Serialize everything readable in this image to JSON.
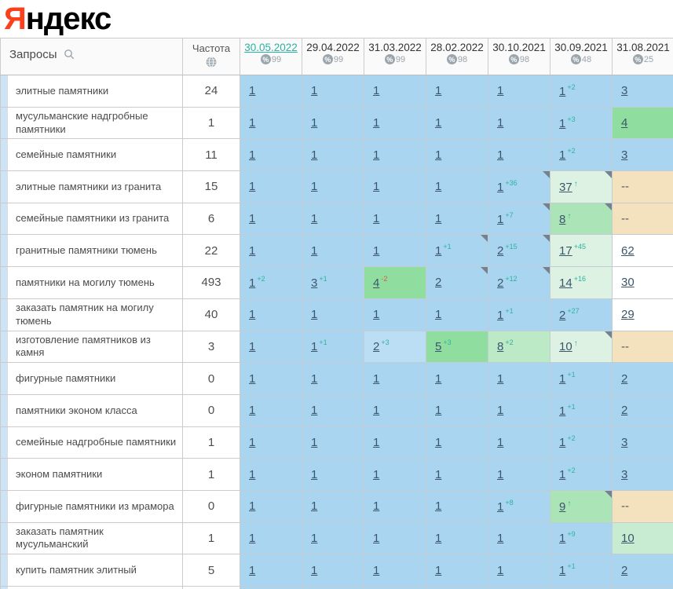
{
  "logo": {
    "red_letter": "Я",
    "black_letters": "ндекс"
  },
  "colors": {
    "accent_teal": "#2ab3a2",
    "change_up": "#2bb3a0",
    "change_down": "#e0564a",
    "link": "#3b566b",
    "yandex_red": "#fc3f1d",
    "bg": {
      "b": "#a9d5f1",
      "b2": "#bcdef5",
      "g1": "#90de9f",
      "g2": "#abe4b6",
      "g3": "#bce9c6",
      "g4": "#ddf2e2",
      "g5": "#c8ecd2",
      "t": "#f4e2bf",
      "w": "#ffffff"
    }
  },
  "table": {
    "queries_header": "Запросы",
    "frequency_header": "Частота",
    "date_columns": [
      {
        "date": "30.05.2022",
        "visibility": "99",
        "active": true
      },
      {
        "date": "29.04.2022",
        "visibility": "99",
        "active": false
      },
      {
        "date": "31.03.2022",
        "visibility": "99",
        "active": false
      },
      {
        "date": "28.02.2022",
        "visibility": "98",
        "active": false
      },
      {
        "date": "30.10.2021",
        "visibility": "98",
        "active": false
      },
      {
        "date": "30.09.2021",
        "visibility": "48",
        "active": false
      },
      {
        "date": "31.08.2021",
        "visibility": "25",
        "active": false
      }
    ],
    "rows": [
      {
        "keyword": "элитные памятники",
        "frequency": "24",
        "cells": [
          {
            "v": "1",
            "bg": "b"
          },
          {
            "v": "1",
            "bg": "b"
          },
          {
            "v": "1",
            "bg": "b"
          },
          {
            "v": "1",
            "bg": "b"
          },
          {
            "v": "1",
            "bg": "b"
          },
          {
            "v": "1",
            "bg": "b",
            "sup": "+2"
          },
          {
            "v": "3",
            "bg": "b"
          }
        ]
      },
      {
        "keyword": "мусульманские надгробные памятники",
        "frequency": "1",
        "cells": [
          {
            "v": "1",
            "bg": "b"
          },
          {
            "v": "1",
            "bg": "b"
          },
          {
            "v": "1",
            "bg": "b"
          },
          {
            "v": "1",
            "bg": "b"
          },
          {
            "v": "1",
            "bg": "b"
          },
          {
            "v": "1",
            "bg": "b",
            "sup": "+3"
          },
          {
            "v": "4",
            "bg": "g1"
          }
        ]
      },
      {
        "keyword": "семейные памятники",
        "frequency": "11",
        "cells": [
          {
            "v": "1",
            "bg": "b"
          },
          {
            "v": "1",
            "bg": "b"
          },
          {
            "v": "1",
            "bg": "b"
          },
          {
            "v": "1",
            "bg": "b"
          },
          {
            "v": "1",
            "bg": "b"
          },
          {
            "v": "1",
            "bg": "b",
            "sup": "+2"
          },
          {
            "v": "3",
            "bg": "b"
          }
        ]
      },
      {
        "keyword": "элитные памятники из гранита",
        "frequency": "15",
        "cells": [
          {
            "v": "1",
            "bg": "b"
          },
          {
            "v": "1",
            "bg": "b"
          },
          {
            "v": "1",
            "bg": "b"
          },
          {
            "v": "1",
            "bg": "b"
          },
          {
            "v": "1",
            "bg": "b",
            "sup": "+36",
            "corner": true
          },
          {
            "v": "37",
            "bg": "g4",
            "new": true,
            "corner": true
          },
          {
            "v": "--",
            "bg": "t",
            "dash": true
          }
        ]
      },
      {
        "keyword": "семейные памятники из гранита",
        "frequency": "6",
        "cells": [
          {
            "v": "1",
            "bg": "b"
          },
          {
            "v": "1",
            "bg": "b"
          },
          {
            "v": "1",
            "bg": "b"
          },
          {
            "v": "1",
            "bg": "b"
          },
          {
            "v": "1",
            "bg": "b",
            "sup": "+7",
            "corner": true
          },
          {
            "v": "8",
            "bg": "g2",
            "new": true,
            "corner": true
          },
          {
            "v": "--",
            "bg": "t",
            "dash": true
          }
        ]
      },
      {
        "keyword": "гранитные памятники тюмень",
        "frequency": "22",
        "cells": [
          {
            "v": "1",
            "bg": "b"
          },
          {
            "v": "1",
            "bg": "b"
          },
          {
            "v": "1",
            "bg": "b"
          },
          {
            "v": "1",
            "bg": "b",
            "sup": "+1",
            "corner": true
          },
          {
            "v": "2",
            "bg": "b",
            "sup": "+15",
            "corner": true
          },
          {
            "v": "17",
            "bg": "g4",
            "sup": "+45"
          },
          {
            "v": "62",
            "bg": "w"
          }
        ]
      },
      {
        "keyword": "памятники на могилу тюмень",
        "frequency": "493",
        "cells": [
          {
            "v": "1",
            "bg": "b",
            "sup": "+2"
          },
          {
            "v": "3",
            "bg": "b",
            "sup": "+1"
          },
          {
            "v": "4",
            "bg": "g1",
            "sup": "-2",
            "down": true
          },
          {
            "v": "2",
            "bg": "b",
            "corner": true
          },
          {
            "v": "2",
            "bg": "b",
            "sup": "+12",
            "corner": true
          },
          {
            "v": "14",
            "bg": "g4",
            "sup": "+16"
          },
          {
            "v": "30",
            "bg": "w"
          }
        ]
      },
      {
        "keyword": "заказать памятник на могилу тюмень",
        "frequency": "40",
        "cells": [
          {
            "v": "1",
            "bg": "b"
          },
          {
            "v": "1",
            "bg": "b"
          },
          {
            "v": "1",
            "bg": "b"
          },
          {
            "v": "1",
            "bg": "b"
          },
          {
            "v": "1",
            "bg": "b",
            "sup": "+1"
          },
          {
            "v": "2",
            "bg": "b",
            "sup": "+27"
          },
          {
            "v": "29",
            "bg": "w"
          }
        ]
      },
      {
        "keyword": "изготовление памятников из камня",
        "frequency": "3",
        "cells": [
          {
            "v": "1",
            "bg": "b"
          },
          {
            "v": "1",
            "bg": "b",
            "sup": "+1"
          },
          {
            "v": "2",
            "bg": "b2",
            "sup": "+3"
          },
          {
            "v": "5",
            "bg": "g1",
            "sup": "+3"
          },
          {
            "v": "8",
            "bg": "g3",
            "sup": "+2"
          },
          {
            "v": "10",
            "bg": "g4",
            "new": true,
            "corner": true
          },
          {
            "v": "--",
            "bg": "t",
            "dash": true
          }
        ]
      },
      {
        "keyword": "фигурные памятники",
        "frequency": "0",
        "cells": [
          {
            "v": "1",
            "bg": "b"
          },
          {
            "v": "1",
            "bg": "b"
          },
          {
            "v": "1",
            "bg": "b"
          },
          {
            "v": "1",
            "bg": "b"
          },
          {
            "v": "1",
            "bg": "b"
          },
          {
            "v": "1",
            "bg": "b",
            "sup": "+1"
          },
          {
            "v": "2",
            "bg": "b"
          }
        ]
      },
      {
        "keyword": "памятники эконом класса",
        "frequency": "0",
        "cells": [
          {
            "v": "1",
            "bg": "b"
          },
          {
            "v": "1",
            "bg": "b"
          },
          {
            "v": "1",
            "bg": "b"
          },
          {
            "v": "1",
            "bg": "b"
          },
          {
            "v": "1",
            "bg": "b"
          },
          {
            "v": "1",
            "bg": "b",
            "sup": "+1"
          },
          {
            "v": "2",
            "bg": "b"
          }
        ]
      },
      {
        "keyword": "семейные надгробные памятники",
        "frequency": "1",
        "cells": [
          {
            "v": "1",
            "bg": "b"
          },
          {
            "v": "1",
            "bg": "b"
          },
          {
            "v": "1",
            "bg": "b"
          },
          {
            "v": "1",
            "bg": "b"
          },
          {
            "v": "1",
            "bg": "b"
          },
          {
            "v": "1",
            "bg": "b",
            "sup": "+2"
          },
          {
            "v": "3",
            "bg": "b"
          }
        ]
      },
      {
        "keyword": "эконом памятники",
        "frequency": "1",
        "cells": [
          {
            "v": "1",
            "bg": "b"
          },
          {
            "v": "1",
            "bg": "b"
          },
          {
            "v": "1",
            "bg": "b"
          },
          {
            "v": "1",
            "bg": "b"
          },
          {
            "v": "1",
            "bg": "b"
          },
          {
            "v": "1",
            "bg": "b",
            "sup": "+2"
          },
          {
            "v": "3",
            "bg": "b"
          }
        ]
      },
      {
        "keyword": "фигурные памятники из мрамора",
        "frequency": "0",
        "cells": [
          {
            "v": "1",
            "bg": "b"
          },
          {
            "v": "1",
            "bg": "b"
          },
          {
            "v": "1",
            "bg": "b"
          },
          {
            "v": "1",
            "bg": "b"
          },
          {
            "v": "1",
            "bg": "b",
            "sup": "+8"
          },
          {
            "v": "9",
            "bg": "g2",
            "new": true,
            "corner": true
          },
          {
            "v": "--",
            "bg": "t",
            "dash": true
          }
        ]
      },
      {
        "keyword": "заказать памятник мусульманский",
        "frequency": "1",
        "cells": [
          {
            "v": "1",
            "bg": "b"
          },
          {
            "v": "1",
            "bg": "b"
          },
          {
            "v": "1",
            "bg": "b"
          },
          {
            "v": "1",
            "bg": "b"
          },
          {
            "v": "1",
            "bg": "b"
          },
          {
            "v": "1",
            "bg": "b",
            "sup": "+9"
          },
          {
            "v": "10",
            "bg": "g5"
          }
        ]
      },
      {
        "keyword": "купить памятник элитный",
        "frequency": "5",
        "cells": [
          {
            "v": "1",
            "bg": "b"
          },
          {
            "v": "1",
            "bg": "b"
          },
          {
            "v": "1",
            "bg": "b"
          },
          {
            "v": "1",
            "bg": "b"
          },
          {
            "v": "1",
            "bg": "b"
          },
          {
            "v": "1",
            "bg": "b",
            "sup": "+1"
          },
          {
            "v": "2",
            "bg": "b"
          }
        ]
      }
    ]
  }
}
